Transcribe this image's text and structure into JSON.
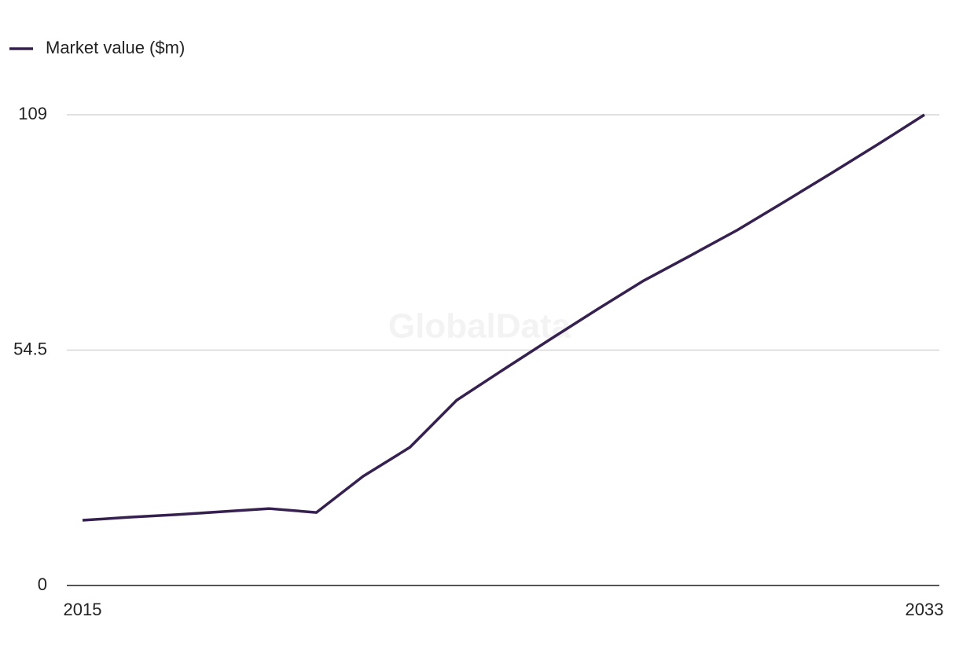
{
  "chart_data": {
    "type": "line",
    "watermark": "GlobalData",
    "x": [
      2015,
      2016,
      2017,
      2018,
      2019,
      2020,
      2021,
      2022,
      2023,
      2024,
      2025,
      2026,
      2027,
      2028,
      2029,
      2030,
      2031,
      2032,
      2033
    ],
    "series": [
      {
        "name": "Market value ($m)",
        "color": "#35204f",
        "values": [
          15.1,
          15.8,
          16.4,
          17.1,
          17.8,
          16.9,
          25.3,
          32.0,
          42.9,
          50.0,
          57.0,
          63.9,
          70.6,
          76.4,
          82.3,
          88.8,
          95.4,
          102.1,
          109.0
        ]
      }
    ],
    "xlim": [
      2015,
      2033
    ],
    "xticks": [
      2015,
      2033
    ],
    "ylim": [
      0,
      109
    ],
    "yticks": [
      0,
      54.5,
      109
    ],
    "grid": true,
    "legend": "top-left"
  }
}
